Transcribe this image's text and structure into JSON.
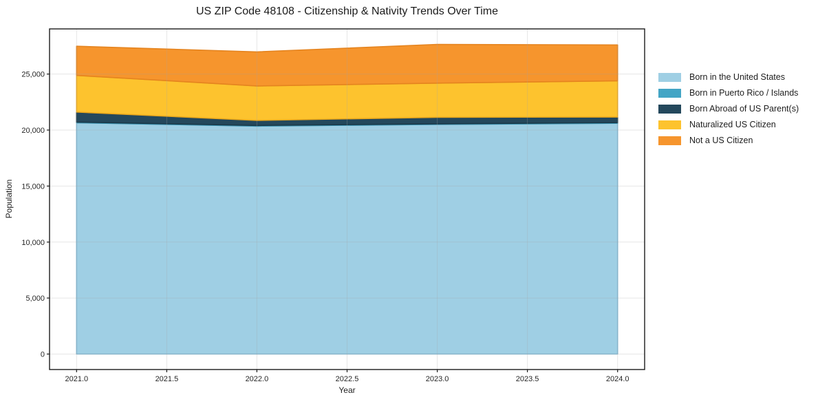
{
  "chart_data": {
    "type": "area",
    "stacked": true,
    "title": "US ZIP Code 48108 - Citizenship & Nativity Trends Over Time",
    "xlabel": "Year",
    "ylabel": "Population",
    "x": [
      2021,
      2022,
      2023,
      2024
    ],
    "series": [
      {
        "name": "Born in the United States",
        "values": [
          20650,
          20350,
          20500,
          20600
        ],
        "fill": "#9fcfe4",
        "edge": "#82b9d4"
      },
      {
        "name": "Born in Puerto Rico / Islands",
        "values": [
          60,
          60,
          60,
          60
        ],
        "fill": "#43a5c5",
        "edge": "#3790ae"
      },
      {
        "name": "Born Abroad of US Parent(s)",
        "values": [
          900,
          450,
          580,
          500
        ],
        "fill": "#24485c",
        "edge": "#1c3a4a"
      },
      {
        "name": "Naturalized US Citizen",
        "values": [
          3270,
          3080,
          3050,
          3230
        ],
        "fill": "#fdc32e",
        "edge": "#eda91b"
      },
      {
        "name": "Not a US Citizen",
        "values": [
          2600,
          3040,
          3460,
          3210
        ],
        "fill": "#f6952d",
        "edge": "#e5841f"
      }
    ],
    "totals": [
      27480,
      26980,
      27650,
      27600
    ],
    "xlim": [
      2020.85,
      2024.15
    ],
    "ylim": [
      -1380,
      29030
    ],
    "xticks": {
      "values": [
        2021.0,
        2021.5,
        2022.0,
        2022.5,
        2023.0,
        2023.5,
        2024.0
      ],
      "labels": [
        "2021.0",
        "2021.5",
        "2022.0",
        "2022.5",
        "2023.0",
        "2023.5",
        "2024.0"
      ]
    },
    "yticks": {
      "values": [
        0,
        5000,
        10000,
        15000,
        20000,
        25000
      ],
      "labels": [
        "0",
        "5,000",
        "10,000",
        "15,000",
        "20,000",
        "25,000"
      ]
    },
    "grid": true,
    "legend_position": "right",
    "frame_color": "#1a1a1a",
    "grid_color": "rgba(165,165,165,0.28)",
    "tick_label_color": "#262626"
  }
}
